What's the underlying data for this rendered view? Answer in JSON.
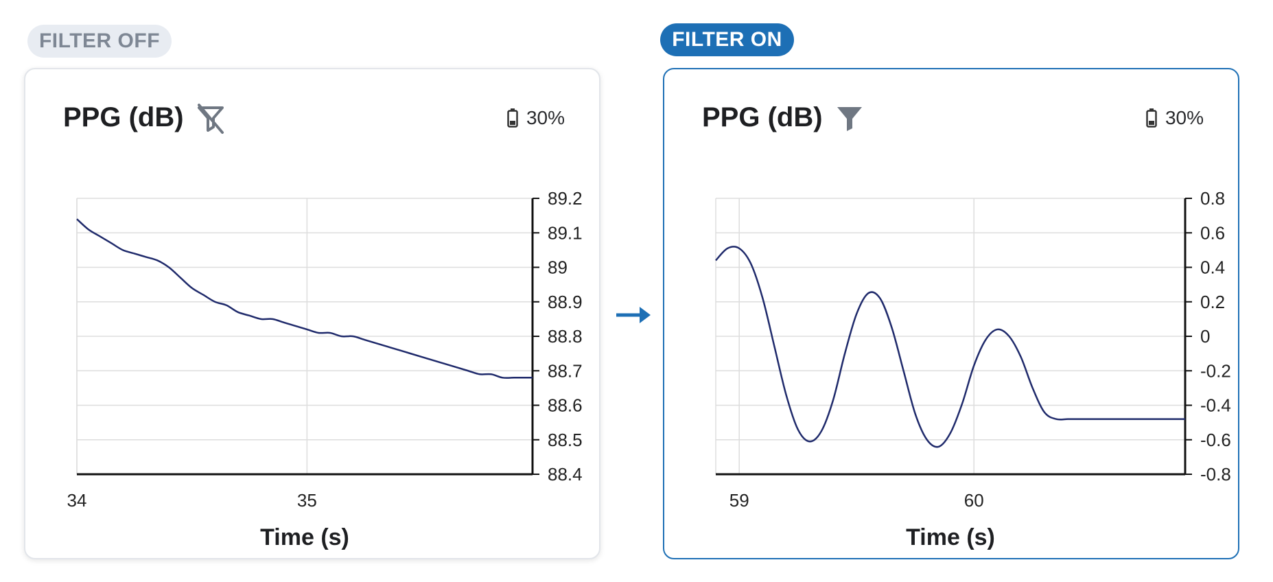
{
  "panels": [
    {
      "pill": "FILTER OFF",
      "title": "PPG (dB)",
      "filter_icon": "filter-off-icon",
      "battery_icon": "battery-icon",
      "battery": "30%"
    },
    {
      "pill": "FILTER ON",
      "title": "PPG (dB)",
      "filter_icon": "filter-icon",
      "battery_icon": "battery-icon",
      "battery": "30%"
    }
  ],
  "arrow_icon": "arrow-right-icon",
  "colors": {
    "line": "#1f2a6b",
    "accent": "#1d6fb5",
    "grid": "#dddddd",
    "axis": "#111111",
    "pill_off_bg": "#e8ecf2",
    "pill_off_text": "#7e8794",
    "icon_gray": "#6f7782"
  },
  "chart_data": [
    {
      "type": "line",
      "title": "PPG (dB)",
      "xlabel": "Time (s)",
      "ylabel": "",
      "xlim": [
        34,
        35.98
      ],
      "ylim": [
        88.4,
        89.2
      ],
      "x_ticks": [
        34,
        35
      ],
      "y_ticks": [
        88.4,
        88.5,
        88.6,
        88.7,
        88.8,
        88.9,
        89,
        89.1,
        89.2
      ],
      "y_tick_labels": [
        "88.4",
        "88.5",
        "88.6",
        "88.7",
        "88.8",
        "88.9",
        "89",
        "89.1",
        "89.2"
      ],
      "y_axis_side": "right",
      "grid": true,
      "series": [
        {
          "x": [
            34.0,
            34.05,
            34.1,
            34.15,
            34.2,
            34.25,
            34.3,
            34.35,
            34.4,
            34.45,
            34.5,
            34.55,
            34.6,
            34.65,
            34.7,
            34.75,
            34.8,
            34.85,
            34.9,
            34.95,
            35.0,
            35.05,
            35.1,
            35.15,
            35.2,
            35.25,
            35.3,
            35.35,
            35.4,
            35.45,
            35.5,
            35.55,
            35.6,
            35.65,
            35.7,
            35.75,
            35.8,
            35.85,
            35.9,
            35.95,
            35.98
          ],
          "y": [
            89.14,
            89.11,
            89.09,
            89.07,
            89.05,
            89.04,
            89.03,
            89.02,
            89.0,
            88.97,
            88.94,
            88.92,
            88.9,
            88.89,
            88.87,
            88.86,
            88.85,
            88.85,
            88.84,
            88.83,
            88.82,
            88.81,
            88.81,
            88.8,
            88.8,
            88.79,
            88.78,
            88.77,
            88.76,
            88.75,
            88.74,
            88.73,
            88.72,
            88.71,
            88.7,
            88.69,
            88.69,
            88.68,
            88.68,
            88.68,
            88.68
          ]
        }
      ]
    },
    {
      "type": "line",
      "title": "PPG (dB)",
      "xlabel": "Time (s)",
      "ylabel": "",
      "xlim": [
        58.9,
        60.9
      ],
      "ylim": [
        -0.8,
        0.8
      ],
      "x_ticks": [
        59,
        60
      ],
      "y_ticks": [
        -0.8,
        -0.6,
        -0.4,
        -0.2,
        0,
        0.2,
        0.4,
        0.6,
        0.8
      ],
      "y_tick_labels": [
        "-0.8",
        "-0.6",
        "-0.4",
        "-0.2",
        "0",
        "0.2",
        "0.4",
        "0.6",
        "0.8"
      ],
      "y_axis_side": "right",
      "grid": true,
      "series": [
        {
          "x": [
            58.9,
            58.95,
            59.0,
            59.05,
            59.1,
            59.15,
            59.2,
            59.25,
            59.3,
            59.35,
            59.4,
            59.45,
            59.5,
            59.55,
            59.6,
            59.65,
            59.7,
            59.75,
            59.8,
            59.85,
            59.9,
            59.95,
            60.0,
            60.05,
            60.1,
            60.15,
            60.2,
            60.25,
            60.3,
            60.35,
            60.4,
            60.45,
            60.5,
            60.55,
            60.6,
            60.65,
            60.7,
            60.75,
            60.8,
            60.85,
            60.9
          ],
          "y": [
            0.44,
            0.51,
            0.51,
            0.42,
            0.22,
            -0.06,
            -0.34,
            -0.54,
            -0.61,
            -0.55,
            -0.37,
            -0.1,
            0.13,
            0.25,
            0.22,
            0.05,
            -0.2,
            -0.45,
            -0.6,
            -0.64,
            -0.56,
            -0.39,
            -0.17,
            -0.02,
            0.04,
            0.0,
            -0.12,
            -0.3,
            -0.44,
            -0.48,
            -0.48,
            -0.48,
            -0.48,
            -0.48,
            -0.48,
            -0.48,
            -0.48,
            -0.48,
            -0.48,
            -0.48,
            -0.48
          ]
        }
      ]
    }
  ]
}
